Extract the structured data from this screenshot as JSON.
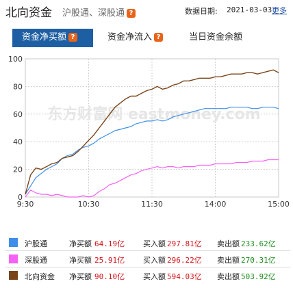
{
  "header": {
    "title": "北向资金",
    "subtitle": "沪股通、深股通",
    "info_mark": "?",
    "date_label": "数据日期:",
    "date_value": "2021-03-03",
    "more_label": "更多"
  },
  "tabs": [
    {
      "label": "资金净买额",
      "active": true
    },
    {
      "label": "资金净流入",
      "active": false
    },
    {
      "label": "当日资金余额",
      "active": false
    }
  ],
  "chart_data": {
    "type": "line",
    "x_ticks": [
      "9:30",
      "10:30",
      "11:30",
      "14:00",
      "15:00"
    ],
    "ylim": [
      0,
      100
    ],
    "y_ticks": [
      "0",
      "20",
      "40",
      "60",
      "80",
      "100"
    ],
    "grid": true,
    "watermark": "东方财富网 eastmoney.com",
    "series": [
      {
        "name": "沪股通",
        "color": "#3d8ee8",
        "points": [
          [
            0,
            2
          ],
          [
            5,
            8
          ],
          [
            10,
            14
          ],
          [
            15,
            17
          ],
          [
            20,
            20
          ],
          [
            25,
            22
          ],
          [
            30,
            24
          ],
          [
            35,
            28
          ],
          [
            40,
            30
          ],
          [
            45,
            31
          ],
          [
            50,
            34
          ],
          [
            55,
            36
          ],
          [
            60,
            37
          ],
          [
            65,
            39
          ],
          [
            70,
            42
          ],
          [
            75,
            44
          ],
          [
            80,
            46
          ],
          [
            85,
            48
          ],
          [
            90,
            49
          ],
          [
            95,
            50
          ],
          [
            100,
            51
          ],
          [
            105,
            53
          ],
          [
            110,
            54
          ],
          [
            115,
            55
          ],
          [
            120,
            55
          ],
          [
            125,
            56
          ],
          [
            130,
            55
          ],
          [
            135,
            56
          ],
          [
            140,
            58
          ],
          [
            145,
            59
          ],
          [
            150,
            60
          ],
          [
            155,
            61
          ],
          [
            160,
            62
          ],
          [
            165,
            63
          ],
          [
            170,
            64
          ],
          [
            175,
            64
          ],
          [
            180,
            64
          ],
          [
            185,
            64
          ],
          [
            190,
            64
          ],
          [
            195,
            65
          ],
          [
            200,
            65
          ],
          [
            205,
            65
          ],
          [
            210,
            65
          ],
          [
            215,
            64
          ],
          [
            220,
            64
          ],
          [
            225,
            65
          ],
          [
            230,
            65
          ],
          [
            235,
            65
          ],
          [
            240,
            64
          ]
        ]
      },
      {
        "name": "深股通",
        "color": "#f560f5",
        "points": [
          [
            0,
            0
          ],
          [
            5,
            5
          ],
          [
            10,
            3
          ],
          [
            15,
            2
          ],
          [
            20,
            2
          ],
          [
            25,
            1
          ],
          [
            30,
            2
          ],
          [
            35,
            1
          ],
          [
            40,
            0
          ],
          [
            45,
            0
          ],
          [
            50,
            0
          ],
          [
            55,
            1
          ],
          [
            60,
            0
          ],
          [
            65,
            1
          ],
          [
            70,
            4
          ],
          [
            75,
            6
          ],
          [
            80,
            9
          ],
          [
            85,
            10
          ],
          [
            90,
            12
          ],
          [
            95,
            14
          ],
          [
            100,
            16
          ],
          [
            105,
            17
          ],
          [
            110,
            19
          ],
          [
            115,
            20
          ],
          [
            120,
            21
          ],
          [
            125,
            22
          ],
          [
            130,
            21
          ],
          [
            135,
            22
          ],
          [
            140,
            22
          ],
          [
            145,
            21
          ],
          [
            150,
            22
          ],
          [
            155,
            22
          ],
          [
            160,
            22
          ],
          [
            165,
            23
          ],
          [
            170,
            23
          ],
          [
            175,
            23
          ],
          [
            180,
            24
          ],
          [
            185,
            24
          ],
          [
            190,
            24
          ],
          [
            195,
            24
          ],
          [
            200,
            25
          ],
          [
            205,
            25
          ],
          [
            210,
            25
          ],
          [
            215,
            26
          ],
          [
            220,
            26
          ],
          [
            225,
            26
          ],
          [
            230,
            27
          ],
          [
            235,
            27
          ],
          [
            240,
            27
          ]
        ]
      },
      {
        "name": "北向资金",
        "color": "#7a4419",
        "points": [
          [
            0,
            2
          ],
          [
            5,
            16
          ],
          [
            10,
            21
          ],
          [
            15,
            20
          ],
          [
            20,
            22
          ],
          [
            25,
            24
          ],
          [
            30,
            25
          ],
          [
            35,
            28
          ],
          [
            40,
            29
          ],
          [
            45,
            30
          ],
          [
            50,
            33
          ],
          [
            55,
            37
          ],
          [
            60,
            41
          ],
          [
            65,
            45
          ],
          [
            70,
            50
          ],
          [
            75,
            55
          ],
          [
            80,
            60
          ],
          [
            85,
            65
          ],
          [
            90,
            68
          ],
          [
            95,
            71
          ],
          [
            100,
            73
          ],
          [
            105,
            73
          ],
          [
            110,
            75
          ],
          [
            115,
            77
          ],
          [
            120,
            78
          ],
          [
            125,
            80
          ],
          [
            130,
            78
          ],
          [
            135,
            79
          ],
          [
            140,
            81
          ],
          [
            145,
            82
          ],
          [
            150,
            84
          ],
          [
            155,
            84
          ],
          [
            160,
            85
          ],
          [
            165,
            86
          ],
          [
            170,
            86
          ],
          [
            175,
            86
          ],
          [
            180,
            87
          ],
          [
            185,
            87
          ],
          [
            190,
            88
          ],
          [
            195,
            89
          ],
          [
            200,
            89
          ],
          [
            205,
            89
          ],
          [
            210,
            90
          ],
          [
            215,
            90
          ],
          [
            220,
            89
          ],
          [
            225,
            90
          ],
          [
            230,
            91
          ],
          [
            235,
            92
          ],
          [
            240,
            90
          ]
        ]
      }
    ]
  },
  "legend": [
    {
      "name": "沪股通",
      "color": "#3d8ee8",
      "net_label": "净买额",
      "net": "64.19亿",
      "buy_label": "买入额",
      "buy": "297.81亿",
      "sell_label": "卖出额",
      "sell": "233.62亿"
    },
    {
      "name": "深股通",
      "color": "#f560f5",
      "net_label": "净买额",
      "net": "25.91亿",
      "buy_label": "买入额",
      "buy": "296.22亿",
      "sell_label": "卖出额",
      "sell": "270.31亿"
    },
    {
      "name": "北向资金",
      "color": "#7a4419",
      "net_label": "净买额",
      "net": "90.10亿",
      "buy_label": "买入额",
      "buy": "594.03亿",
      "sell_label": "卖出额",
      "sell": "503.92亿"
    }
  ]
}
